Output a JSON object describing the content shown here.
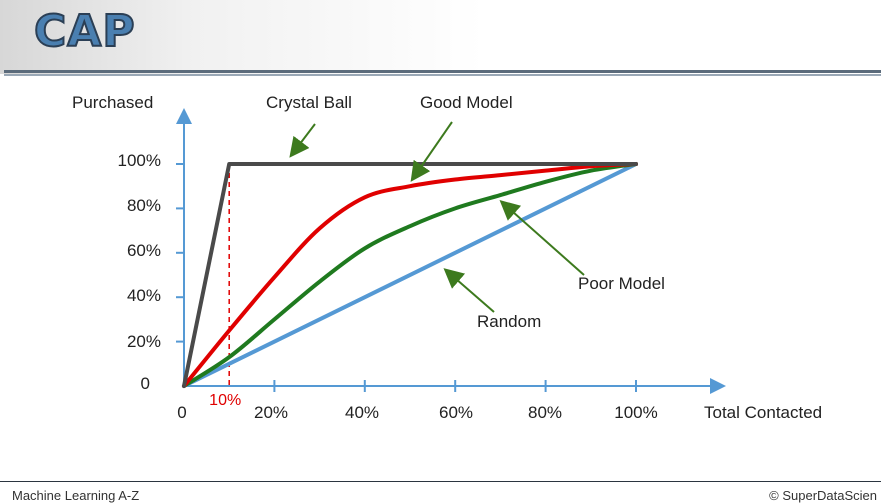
{
  "slide": {
    "title": "CAP",
    "footer_left": "Machine Learning A-Z",
    "footer_right": "© SuperDataScien"
  },
  "chart_data": {
    "type": "line",
    "ylabel": "Purchased",
    "xlabel": "Total Contacted",
    "xlim": [
      0,
      100
    ],
    "ylim": [
      0,
      100
    ],
    "x_ticks": [
      "0",
      "20%",
      "40%",
      "60%",
      "80%",
      "100%"
    ],
    "y_ticks": [
      "0",
      "20%",
      "40%",
      "60%",
      "80%",
      "100%"
    ],
    "marker": {
      "label": "10%",
      "x": 10,
      "color": "#e00000"
    },
    "series": [
      {
        "name": "Crystal Ball",
        "color": "#4a4a4a",
        "x": [
          0,
          10,
          100
        ],
        "y": [
          0,
          100,
          100
        ]
      },
      {
        "name": "Good Model",
        "color": "#e00000",
        "x": [
          0,
          10,
          20,
          30,
          40,
          50,
          60,
          70,
          80,
          90,
          100
        ],
        "y": [
          0,
          25,
          49,
          71,
          85,
          90,
          93,
          95,
          97,
          99,
          100
        ]
      },
      {
        "name": "Poor Model",
        "color": "#1f7a1f",
        "x": [
          0,
          10,
          20,
          30,
          40,
          50,
          60,
          70,
          80,
          90,
          100
        ],
        "y": [
          0,
          13,
          30,
          47,
          62,
          72,
          80,
          86,
          92,
          97,
          100
        ]
      },
      {
        "name": "Random",
        "color": "#5599d4",
        "x": [
          0,
          100
        ],
        "y": [
          0,
          100
        ]
      }
    ],
    "annotations": [
      {
        "text": "Crystal Ball",
        "target": "Crystal Ball"
      },
      {
        "text": "Good Model",
        "target": "Good Model"
      },
      {
        "text": "Poor Model",
        "target": "Poor Model"
      },
      {
        "text": "Random",
        "target": "Random"
      }
    ],
    "colors": {
      "axis": "#5599d4",
      "arrow": "#3d7a1e"
    }
  }
}
